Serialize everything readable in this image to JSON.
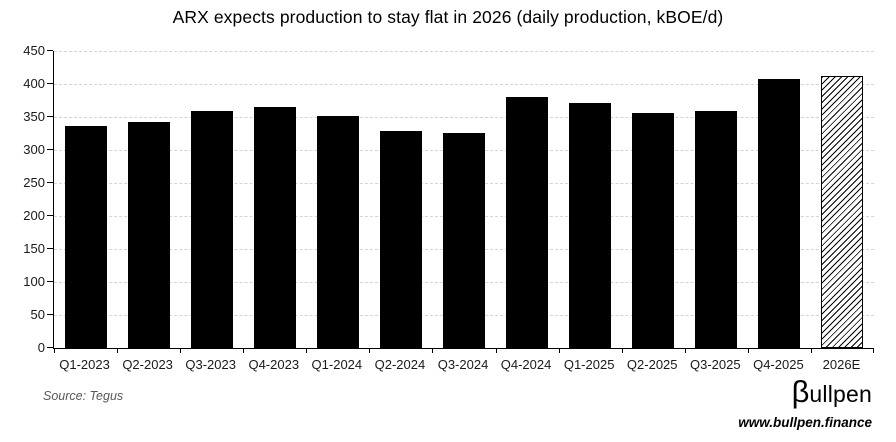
{
  "chart_data": {
    "type": "bar",
    "title": "ARX expects production to stay flat in 2026 (daily production, kBOE/d)",
    "categories": [
      "Q1-2023",
      "Q2-2023",
      "Q3-2023",
      "Q4-2023",
      "Q1-2024",
      "Q2-2024",
      "Q3-2024",
      "Q4-2024",
      "Q1-2025",
      "Q2-2025",
      "Q3-2025",
      "Q4-2025",
      "2026E"
    ],
    "values": [
      337,
      342,
      359,
      365,
      351,
      329,
      326,
      381,
      371,
      356,
      359,
      407,
      412
    ],
    "ylabel": "",
    "xlabel": "",
    "ylim": [
      0,
      450
    ],
    "ytick_step": 50,
    "y_ticks": [
      450,
      400,
      350,
      300,
      250,
      200,
      150,
      100,
      50,
      0
    ],
    "grid": "horizontal-dashed",
    "legend_position": "none",
    "bar_color": "#000000",
    "grid_color": "#d4d4d4",
    "axis_color": "#000000",
    "forecast": {
      "category": "2026E",
      "style": "diagonal-hatch"
    }
  },
  "footer": {
    "source": "Source: Tegus",
    "source_color": "#595959",
    "logo_beta": "β",
    "logo_rest": "ullpen",
    "url": "www.bullpen.finance"
  }
}
